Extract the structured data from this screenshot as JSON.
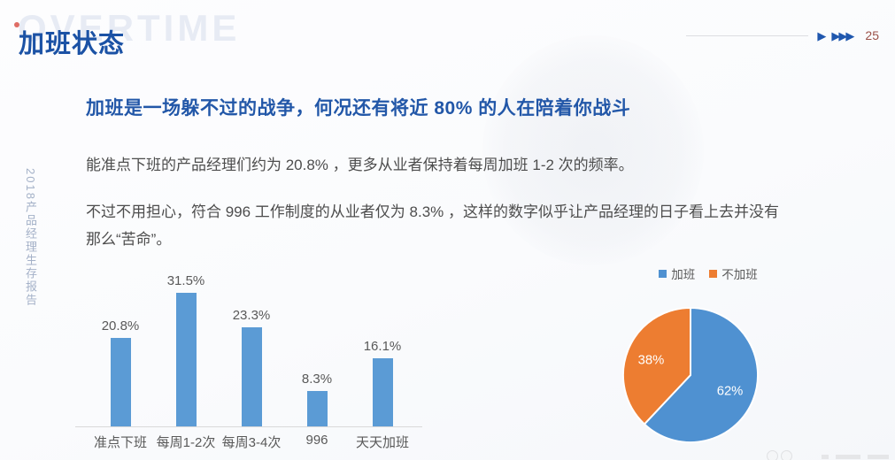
{
  "slide": {
    "watermark_text": "OVERTIME",
    "title": "加班状态",
    "nav_arrow_single": "▶",
    "nav_arrow_triple": "▶▶▶",
    "page_number": "25",
    "sidebar_vertical_text": "2018产品经理生存报告",
    "heading": "加班是一场躲不过的战争，何况还有将近 80% 的人在陪着你战斗",
    "paragraph_1": "能准点下班的产品经理们约为 20.8% ，更多从业者保持着每周加班 1-2 次的频率。",
    "paragraph_2": "不过不用担心，符合 996 工作制度的从业者仅为 8.3% ，这样的数字似乎让产品经理的日子看上去并没有那么“苦命”。"
  },
  "colors": {
    "title_blue": "#1b52a5",
    "heading_blue": "#2257a8",
    "body_text": "#4d4d4d",
    "nav_arrow_blue": "#1f57ae",
    "page_number_red": "#9b5148",
    "bar_blue": "#5b9bd5",
    "pie_blue": "#4f91d1",
    "pie_orange": "#ed7d31"
  },
  "chart_data": [
    {
      "type": "bar",
      "categories": [
        "准点下班",
        "每周1-2次",
        "每周3-4次",
        "996",
        "天天加班"
      ],
      "values": [
        20.8,
        31.5,
        23.3,
        8.3,
        16.1
      ],
      "value_labels": [
        "20.8%",
        "31.5%",
        "23.3%",
        "8.3%",
        "16.1%"
      ],
      "bar_color": "#5b9bd5",
      "ylim": [
        0,
        35
      ],
      "grid": false,
      "legend": "none",
      "value_labels_position": "above-bars"
    },
    {
      "type": "pie",
      "labels": [
        "加班",
        "不加班"
      ],
      "values": [
        62,
        38
      ],
      "slice_labels": [
        "62%",
        "38%"
      ],
      "colors": [
        "#4f91d1",
        "#ed7d31"
      ],
      "legend_position": "top",
      "start_angle_deg": -90,
      "direction": "clockwise"
    }
  ]
}
